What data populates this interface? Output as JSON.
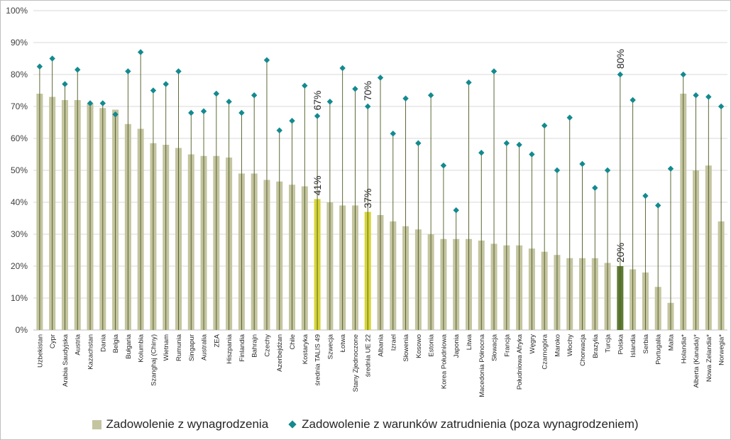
{
  "colors": {
    "bar": "#c4c4a0",
    "bar_highlight_avg": "#d6d43a",
    "bar_highlight_poland": "#5e7a34",
    "marker": "#138a8f",
    "drop_line": "#4a5a20",
    "grid": "#d9d9d9"
  },
  "chart_data": {
    "type": "bar",
    "title": "",
    "xlabel": "",
    "ylabel": "",
    "ylim": [
      0,
      100
    ],
    "yticks": [
      "0%",
      "10%",
      "20%",
      "30%",
      "40%",
      "50%",
      "60%",
      "70%",
      "80%",
      "90%",
      "100%"
    ],
    "grid": true,
    "legend_position": "bottom",
    "categories": [
      "Uzbekistan",
      "Cypr",
      "Arabia Saudyjska",
      "Austria",
      "Kazachstan",
      "Dania",
      "Belgia",
      "Bułgaria",
      "Kolumbia",
      "Szanghaj (Chiny)",
      "Wietnam",
      "Rumunia",
      "Singapur",
      "Australia",
      "ZEA",
      "Hiszpania",
      "Finlandia",
      "Bahrajn",
      "Czechy",
      "Azerbejdżan",
      "Chile",
      "Kostaryka",
      "średnia TALIS 49",
      "Szwecja",
      "Łotwa",
      "Stany Zjednoczone",
      "średnia UE 22",
      "Albania",
      "Izrael",
      "Słowenia",
      "Kosowo",
      "Estonia",
      "Korea Południowa",
      "Japonia",
      "Litwa",
      "Macedonia Północna",
      "Słowacja",
      "Francja",
      "Południowa Afryka",
      "Węgry",
      "Czarnogóra",
      "Maroko",
      "Włochy",
      "Chorwacja",
      "Brazylia",
      "Turcja",
      "Polska",
      "Islandia",
      "Serbia",
      "Portugalia",
      "Malta",
      "Holandia*",
      "Alberta (Kanada)*",
      "Nowa Zelandia*",
      "Norwegia*"
    ],
    "series": [
      {
        "name": "Zadowolenie z wynagrodzenia",
        "type": "bar",
        "values": [
          74,
          73,
          72,
          72,
          71,
          69.5,
          69,
          64.5,
          63,
          58.5,
          58,
          57,
          55,
          54.5,
          54.5,
          54,
          49,
          49,
          47,
          46.5,
          45.5,
          45,
          41,
          40,
          39,
          39,
          37,
          36,
          34,
          32.5,
          31.5,
          30,
          28.5,
          28.5,
          28.5,
          28,
          27,
          26.5,
          26.5,
          25.5,
          24.5,
          23.5,
          22.5,
          22.5,
          22.5,
          21,
          20,
          19,
          18,
          13.5,
          8.5,
          74,
          50,
          51.5,
          34
        ]
      },
      {
        "name": "Zadowolenie z warunków zatrudnienia (poza wynagrodzeniem)",
        "type": "scatter",
        "values": [
          82.5,
          85,
          77,
          81.5,
          71,
          71,
          67.5,
          81,
          87,
          75,
          77,
          81,
          68,
          68.5,
          74,
          71.5,
          68,
          73.5,
          84.5,
          62.5,
          65.5,
          76.5,
          67,
          71.5,
          82,
          75.5,
          70,
          79,
          61.5,
          72.5,
          58.5,
          73.5,
          51.5,
          37.5,
          77.5,
          55.5,
          81,
          58.5,
          58,
          55,
          64,
          50,
          66.5,
          52,
          44.5,
          50,
          80,
          72,
          42,
          39,
          50.5,
          80,
          73.5,
          73,
          70
        ]
      }
    ],
    "annotations": [
      {
        "category": "średnia TALIS 49",
        "bar_label": "41%",
        "marker_label": "67%"
      },
      {
        "category": "średnia UE 22",
        "bar_label": "37%",
        "marker_label": "70%"
      },
      {
        "category": "Polska",
        "bar_label": "20%",
        "marker_label": "80%"
      }
    ]
  },
  "legend": {
    "bar_label": "Zadowolenie z wynagrodzenia",
    "marker_label": "Zadowolenie z warunków zatrudnienia (poza wynagrodzeniem)"
  }
}
